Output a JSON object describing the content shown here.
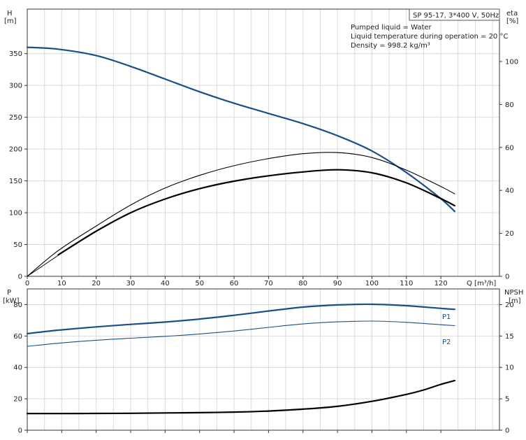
{
  "chart_data": [
    {
      "type": "line",
      "title": "SP 95-17, 3*400 V, 50Hz",
      "annotations": [
        "Pumped liquid = Water",
        "Liquid temperature during operation = 20 °C",
        "Density = 998.2 kg/m³"
      ],
      "xlabel": "Q [m³/h]",
      "ylabel_left": [
        "H",
        "[m]"
      ],
      "ylabel_right": [
        "eta",
        "[%]"
      ],
      "xlim": [
        0,
        137
      ],
      "ylim_left": [
        0,
        420
      ],
      "ylim_right": [
        0,
        124.4
      ],
      "x_ticks": [
        0,
        10,
        20,
        30,
        40,
        50,
        60,
        70,
        80,
        90,
        100,
        110,
        120
      ],
      "y_ticks_left": [
        0,
        50,
        100,
        150,
        200,
        250,
        300,
        350
      ],
      "y_ticks_right": [
        0,
        20,
        40,
        60,
        80,
        100
      ],
      "grid": true,
      "series": [
        {
          "axis": "left",
          "color": "#1a4f8a",
          "width": 2.2,
          "x": [
            0,
            9,
            20,
            30,
            40,
            50,
            60,
            70,
            80,
            90,
            100,
            110,
            120,
            124
          ],
          "y": [
            360,
            357,
            347,
            330,
            310,
            290,
            272,
            256,
            240,
            221,
            197,
            163,
            122,
            102
          ]
        },
        {
          "axis": "right",
          "color": "#000000",
          "width": 2.2,
          "x": [
            9,
            20,
            30,
            40,
            50,
            60,
            70,
            80,
            90,
            100,
            110,
            120,
            124
          ],
          "y": [
            10,
            21,
            29.6,
            36,
            40.8,
            44.3,
            46.8,
            48.6,
            49.6,
            48.2,
            43.5,
            36.2,
            32.9
          ]
        },
        {
          "axis": "right",
          "color": "#000000",
          "width": 1.1,
          "x": [
            0,
            9,
            20,
            30,
            40,
            50,
            60,
            70,
            80,
            90,
            100,
            110,
            120,
            124
          ],
          "y": [
            0,
            12,
            23.4,
            33.2,
            41.1,
            47,
            51.5,
            54.8,
            57.1,
            57.6,
            55.3,
            49.4,
            41.8,
            38.4
          ]
        },
        {
          "axis": "left",
          "color": "#000000",
          "width": 1,
          "x": [
            0,
            9
          ],
          "y": [
            0,
            33
          ]
        }
      ]
    },
    {
      "type": "line",
      "xlim": [
        0,
        137
      ],
      "ylim_left": [
        0,
        90
      ],
      "ylim_right": [
        0,
        22.5
      ],
      "ylabel_left": [
        "P",
        "[kW]"
      ],
      "ylabel_right": [
        "NPSH",
        "[m]"
      ],
      "y_ticks_left": [
        0,
        20,
        40,
        60,
        80
      ],
      "y_ticks_right": [
        0,
        5,
        10,
        15,
        20
      ],
      "grid": true,
      "series": [
        {
          "name": "P1",
          "axis": "left",
          "color": "#1a4f8a",
          "width": 2.2,
          "x": [
            0,
            9,
            20,
            30,
            40,
            50,
            60,
            70,
            80,
            90,
            100,
            110,
            120,
            124
          ],
          "y": [
            61.5,
            63.7,
            65.8,
            67.4,
            68.9,
            70.8,
            73.2,
            75.9,
            78.4,
            79.8,
            80.2,
            79.3,
            77.6,
            77
          ]
        },
        {
          "name": "P2",
          "axis": "left",
          "color": "#1a4f8a",
          "width": 1.1,
          "x": [
            0,
            9,
            20,
            30,
            40,
            50,
            60,
            70,
            80,
            90,
            100,
            110,
            120,
            124
          ],
          "y": [
            53.4,
            55.4,
            57.3,
            58.6,
            59.8,
            61.3,
            63.2,
            65.5,
            67.7,
            69,
            69.5,
            68.7,
            67.2,
            66.6
          ]
        },
        {
          "axis": "right",
          "color": "#000000",
          "width": 2.2,
          "x": [
            0,
            10,
            20,
            30,
            40,
            50,
            60,
            70,
            80,
            90,
            100,
            110,
            115,
            120,
            124
          ],
          "y": [
            2.65,
            2.65,
            2.67,
            2.7,
            2.75,
            2.8,
            2.88,
            3.05,
            3.35,
            3.8,
            4.6,
            5.7,
            6.4,
            7.3,
            7.9
          ]
        }
      ]
    }
  ]
}
